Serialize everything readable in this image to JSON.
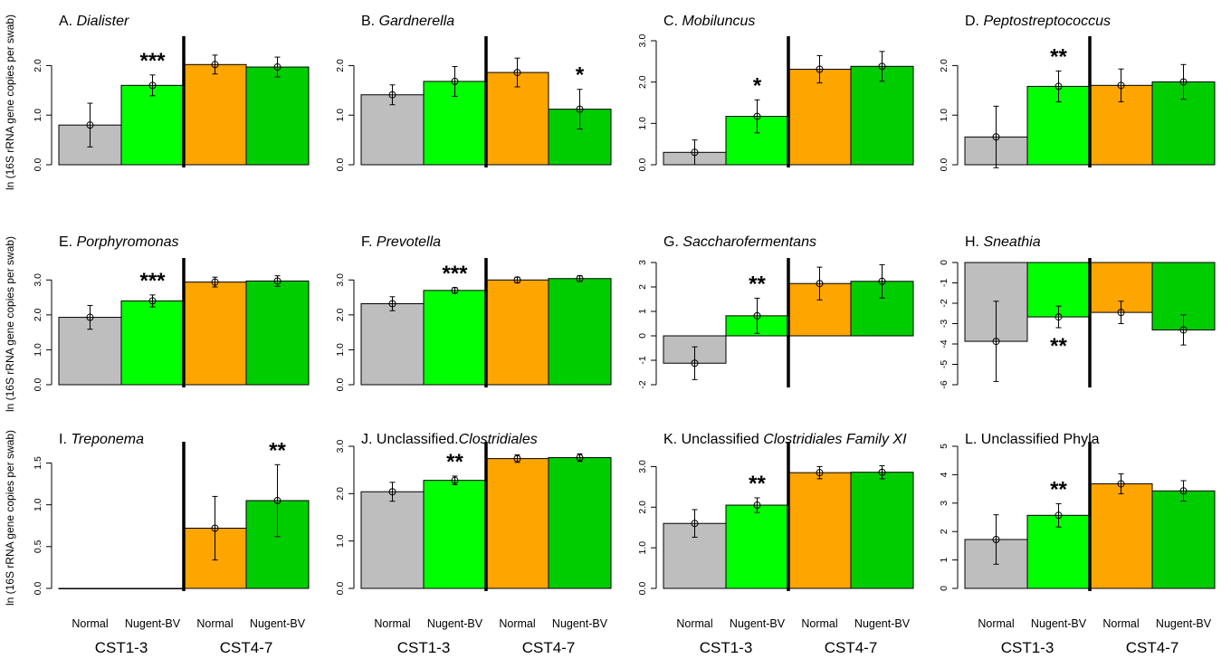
{
  "figure": {
    "ylabel": "ln (16S rRNA gene copies per swab)",
    "groups": [
      "CST1-3",
      "CST4-7"
    ],
    "categories": [
      "Normal",
      "Nugent-BV",
      "Normal",
      "Nugent-BV"
    ],
    "colors": [
      "#bebebe",
      "#00ff00",
      "#ffa500",
      "#00cd00"
    ]
  },
  "chart_data": [
    {
      "type": "bar",
      "letter": "A.",
      "name": "Dialister",
      "italic": true,
      "categories": [
        "Normal",
        "Nugent-BV",
        "Normal",
        "Nugent-BV"
      ],
      "values": [
        0.8,
        1.6,
        2.02,
        1.97
      ],
      "err": [
        0.44,
        0.21,
        0.19,
        0.2
      ],
      "ylim": [
        0,
        2.5
      ],
      "ticks": [
        0,
        1,
        2
      ],
      "tick_labels": [
        "0.0",
        "1.0",
        "2.0"
      ],
      "stars": "***",
      "star_bar": 1
    },
    {
      "type": "bar",
      "letter": "B.",
      "name": "Gardnerella",
      "italic": true,
      "categories": [
        "Normal",
        "Nugent-BV",
        "Normal",
        "Nugent-BV"
      ],
      "values": [
        1.41,
        1.68,
        1.86,
        1.12
      ],
      "err": [
        0.2,
        0.3,
        0.29,
        0.4
      ],
      "ylim": [
        0,
        2.5
      ],
      "ticks": [
        0,
        1,
        2
      ],
      "tick_labels": [
        "0.0",
        "1.0",
        "2.0"
      ],
      "stars": "*",
      "star_bar": 3
    },
    {
      "type": "bar",
      "letter": "C.",
      "name": "Mobiluncus",
      "italic": true,
      "categories": [
        "Normal",
        "Nugent-BV",
        "Normal",
        "Nugent-BV"
      ],
      "values": [
        0.3,
        1.17,
        2.31,
        2.38
      ],
      "err": [
        0.3,
        0.4,
        0.33,
        0.36
      ],
      "ylim": [
        0,
        3
      ],
      "ticks": [
        0,
        1,
        2,
        3
      ],
      "tick_labels": [
        "0.0",
        "1.0",
        "2.0",
        "3.0"
      ],
      "stars": "*",
      "star_bar": 1
    },
    {
      "type": "bar",
      "letter": "D.",
      "name": "Peptostreptococcus",
      "italic": true,
      "categories": [
        "Normal",
        "Nugent-BV",
        "Normal",
        "Nugent-BV"
      ],
      "values": [
        0.56,
        1.58,
        1.6,
        1.67
      ],
      "err": [
        0.62,
        0.31,
        0.33,
        0.35
      ],
      "ylim": [
        0,
        2.5
      ],
      "ticks": [
        0,
        1,
        2
      ],
      "tick_labels": [
        "0.0",
        "1.0",
        "2.0"
      ],
      "stars": "**",
      "star_bar": 1
    },
    {
      "type": "bar",
      "letter": "E.",
      "name": "Porphyromonas",
      "italic": true,
      "categories": [
        "Normal",
        "Nugent-BV",
        "Normal",
        "Nugent-BV"
      ],
      "values": [
        1.93,
        2.4,
        2.94,
        2.97
      ],
      "err": [
        0.34,
        0.17,
        0.14,
        0.15
      ],
      "ylim": [
        0,
        3.5
      ],
      "ticks": [
        0,
        1,
        2,
        3
      ],
      "tick_labels": [
        "0.0",
        "1.0",
        "2.0",
        "3.0"
      ],
      "stars": "***",
      "star_bar": 1
    },
    {
      "type": "bar",
      "letter": "F.",
      "name": "Prevotella",
      "italic": true,
      "categories": [
        "Normal",
        "Nugent-BV",
        "Normal",
        "Nugent-BV"
      ],
      "values": [
        2.32,
        2.7,
        3.0,
        3.04
      ],
      "err": [
        0.2,
        0.08,
        0.08,
        0.08
      ],
      "ylim": [
        0,
        3.5
      ],
      "ticks": [
        0,
        1,
        2,
        3
      ],
      "tick_labels": [
        "0.0",
        "1.0",
        "2.0",
        "3.0"
      ],
      "stars": "***",
      "star_bar": 1
    },
    {
      "type": "bar",
      "letter": "G.",
      "name": "Saccharofermentans",
      "italic": true,
      "categories": [
        "Normal",
        "Nugent-BV",
        "Normal",
        "Nugent-BV"
      ],
      "values": [
        -1.12,
        0.82,
        2.14,
        2.23
      ],
      "err": [
        0.67,
        0.72,
        0.67,
        0.68
      ],
      "ylim": [
        -2,
        3
      ],
      "ticks": [
        -2,
        -1,
        0,
        1,
        2,
        3
      ],
      "tick_labels": [
        "-2",
        "-1",
        "0",
        "1",
        "2",
        "3"
      ],
      "stars": "**",
      "star_bar": 1
    },
    {
      "type": "bar",
      "letter": "H.",
      "name": "Sneathia",
      "italic": true,
      "categories": [
        "Normal",
        "Nugent-BV",
        "Normal",
        "Nugent-BV"
      ],
      "values": [
        -3.87,
        -2.67,
        -2.45,
        -3.31
      ],
      "err": [
        1.97,
        0.53,
        0.55,
        0.74
      ],
      "ylim": [
        -6,
        0
      ],
      "ticks": [
        -6,
        -5,
        -4,
        -3,
        -2,
        -1,
        0
      ],
      "tick_labels": [
        "-6",
        "-5",
        "-4",
        "-3",
        "-2",
        "-1",
        "0"
      ],
      "stars": "**",
      "star_bar": 1,
      "star_below": true
    },
    {
      "type": "bar",
      "letter": "I.",
      "name": "Treponema",
      "italic": true,
      "categories": [
        "Normal",
        "Nugent-BV",
        "Normal",
        "Nugent-BV"
      ],
      "values": [
        0,
        0,
        0.72,
        1.05
      ],
      "err": [
        0,
        0,
        0.38,
        0.43
      ],
      "ylim": [
        0,
        1.7
      ],
      "ticks": [
        0,
        0.5,
        1,
        1.5
      ],
      "tick_labels": [
        "0.0",
        "0.5",
        "1.0",
        "1.5"
      ],
      "stars": "**",
      "star_bar": 3
    },
    {
      "type": "bar",
      "letter": "J.",
      "name": "Clostridiales",
      "prefix": "Unclassified.",
      "italic": true,
      "categories": [
        "Normal",
        "Nugent-BV",
        "Normal",
        "Nugent-BV"
      ],
      "values": [
        2.04,
        2.28,
        2.74,
        2.76
      ],
      "err": [
        0.2,
        0.09,
        0.08,
        0.08
      ],
      "ylim": [
        0,
        3
      ],
      "ticks": [
        0,
        1,
        2,
        3
      ],
      "tick_labels": [
        "0.0",
        "1.0",
        "2.0",
        "3.0"
      ],
      "stars": "**",
      "star_bar": 1
    },
    {
      "type": "bar",
      "letter": "K.",
      "name": "Clostridiales Family XI",
      "prefix": "Unclassified ",
      "italic": true,
      "categories": [
        "Normal",
        "Nugent-BV",
        "Normal",
        "Nugent-BV"
      ],
      "values": [
        1.6,
        2.05,
        2.85,
        2.86
      ],
      "err": [
        0.34,
        0.18,
        0.15,
        0.16
      ],
      "ylim": [
        0,
        3.5
      ],
      "ticks": [
        0,
        1,
        2,
        3
      ],
      "tick_labels": [
        "0.0",
        "1.0",
        "2.0",
        "3.0"
      ],
      "stars": "**",
      "star_bar": 1
    },
    {
      "type": "bar",
      "letter": "L.",
      "name": "Unclassified Phyla",
      "italic": false,
      "categories": [
        "Normal",
        "Nugent-BV",
        "Normal",
        "Nugent-BV"
      ],
      "values": [
        1.72,
        2.57,
        3.68,
        3.43
      ],
      "err": [
        0.87,
        0.41,
        0.35,
        0.36
      ],
      "ylim": [
        0,
        5
      ],
      "ticks": [
        0,
        1,
        2,
        3,
        4,
        5
      ],
      "tick_labels": [
        "0",
        "1",
        "2",
        "3",
        "4",
        "5"
      ],
      "stars": "**",
      "star_bar": 1
    }
  ]
}
